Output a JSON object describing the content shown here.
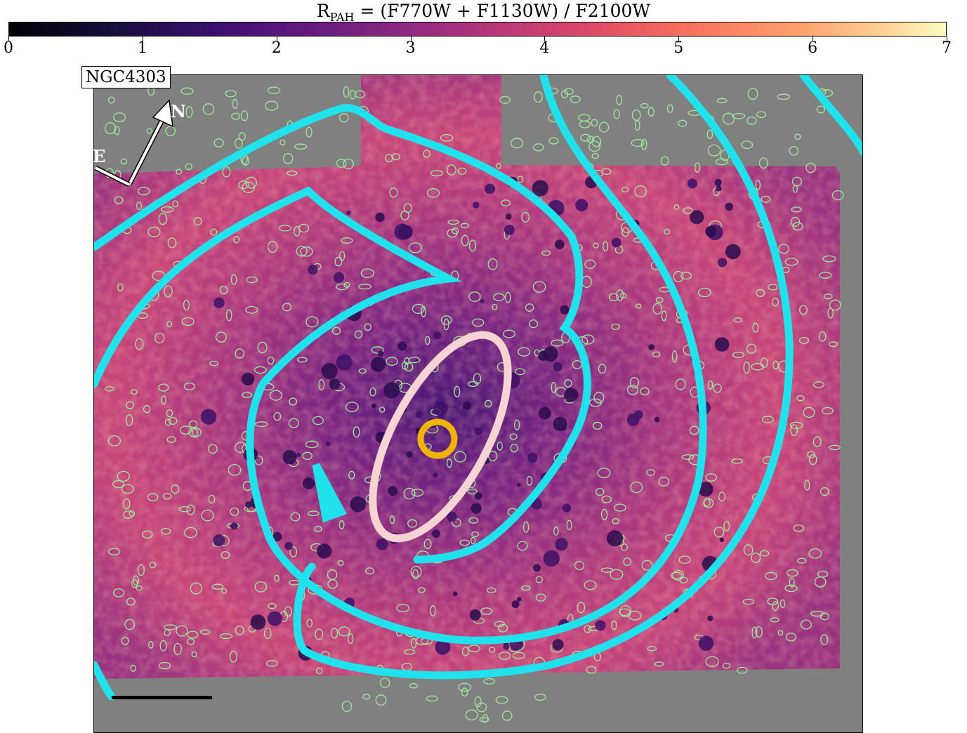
{
  "colorbar": {
    "title_main": "R",
    "title_sub": "PAH",
    "title_rest": " = (F770W + F1130W) / F2100W",
    "range": [
      0,
      7
    ],
    "ticks": [
      "0",
      "1",
      "2",
      "3",
      "4",
      "5",
      "6",
      "7"
    ],
    "colormap": "magma"
  },
  "image": {
    "galaxy_name": "NGC4303",
    "compass": {
      "north": "N",
      "east": "E"
    },
    "overlay_colors": {
      "spiral_arms": "#1fe2ec",
      "bar": "#f7d4d4",
      "center": "#f0b400",
      "contours": "#9ee89a"
    }
  }
}
